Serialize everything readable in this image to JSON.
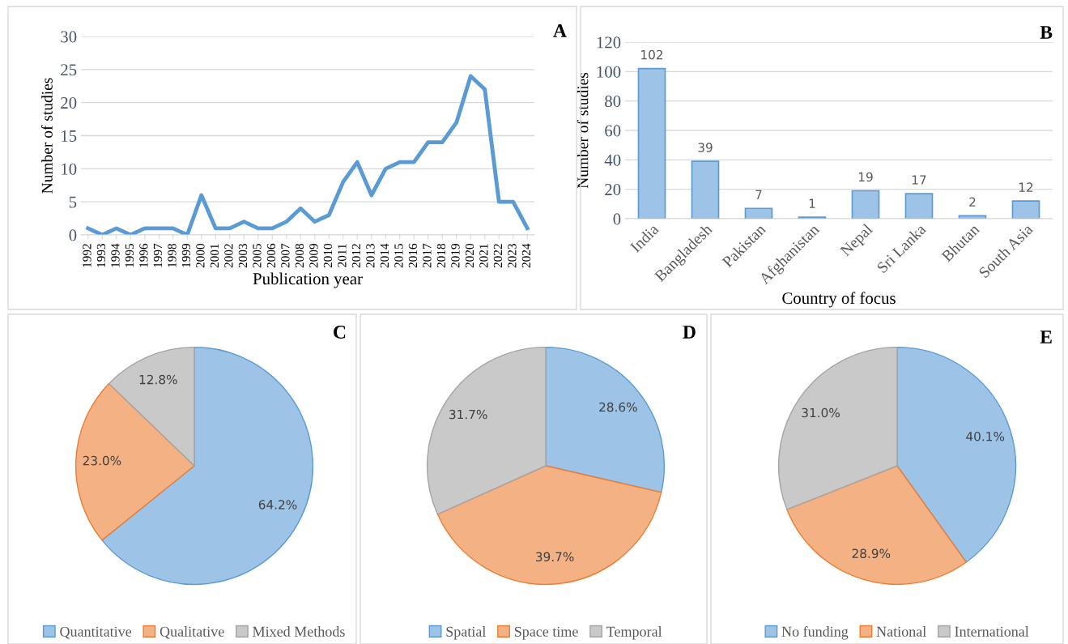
{
  "chart_data": [
    {
      "type": "line",
      "xlabel": "Publication year",
      "ylabel": "Number of studies",
      "annotations": [
        "A"
      ],
      "categories": [
        "1992",
        "1993",
        "1994",
        "1995",
        "1996",
        "1997",
        "1998",
        "1999",
        "2000",
        "2001",
        "2002",
        "2003",
        "2005",
        "2006",
        "2007",
        "2008",
        "2009",
        "2010",
        "2011",
        "2012",
        "2013",
        "2014",
        "2015",
        "2016",
        "2017",
        "2018",
        "2019",
        "2020",
        "2021",
        "2022",
        "2023",
        "2024"
      ],
      "series": [
        {
          "color": "#5b9bd5",
          "values": [
            1,
            0,
            1,
            0,
            1,
            1,
            1,
            0,
            6,
            1,
            1,
            2,
            1,
            1,
            2,
            4,
            2,
            3,
            8,
            11,
            6,
            10,
            11,
            11,
            14,
            14,
            17,
            24,
            22,
            5,
            5,
            1
          ]
        }
      ],
      "ylim": [
        0,
        30
      ],
      "yticks": [
        0,
        5,
        10,
        15,
        20,
        25,
        30
      ],
      "grid": "y",
      "marker": "none",
      "line_style": "solid"
    },
    {
      "type": "bar",
      "xlabel": "Country of focus",
      "ylabel": "Number of studies",
      "annotations": [
        "B"
      ],
      "categories": [
        "India",
        "Bangladesh",
        "Pakistan",
        "Afghanistan",
        "Nepal",
        "Sri Lanka",
        "Bhutan",
        "South Asia"
      ],
      "series": [
        {
          "color": "#9dc3e6",
          "values": [
            102,
            39,
            7,
            1,
            19,
            17,
            2,
            12
          ]
        }
      ],
      "ylim": [
        0,
        120
      ],
      "yticks": [
        0,
        20,
        40,
        60,
        80,
        100,
        120
      ],
      "grid": "y",
      "data_labels": true
    },
    {
      "type": "pie",
      "annotations": [
        "C"
      ],
      "categories": [
        "Quantitative",
        "Qualitative",
        "Mixed Methods"
      ],
      "values": [
        64.2,
        23.0,
        12.8
      ],
      "value_labels": [
        "64.2%",
        "23.0%",
        "12.8%"
      ],
      "colors": [
        "#9dc3e6",
        "#f4b183",
        "#c9c9c9"
      ],
      "data_labels": true,
      "legend": "bottom"
    },
    {
      "type": "pie",
      "annotations": [
        "D"
      ],
      "categories": [
        "Spatial",
        "Space time",
        "Temporal"
      ],
      "values": [
        28.6,
        39.7,
        31.7
      ],
      "value_labels": [
        "28.6%",
        "39.7%",
        "31.7%"
      ],
      "colors": [
        "#9dc3e6",
        "#f4b183",
        "#c9c9c9"
      ],
      "data_labels": true,
      "legend": "bottom"
    },
    {
      "type": "pie",
      "annotations": [
        "E"
      ],
      "categories": [
        "No funding",
        "National",
        "International"
      ],
      "values": [
        40.1,
        28.9,
        31.0
      ],
      "value_labels": [
        "40.1%",
        "28.9%",
        "31.0%"
      ],
      "colors": [
        "#9dc3e6",
        "#f4b183",
        "#c9c9c9"
      ],
      "data_labels": true,
      "legend": "bottom"
    }
  ]
}
